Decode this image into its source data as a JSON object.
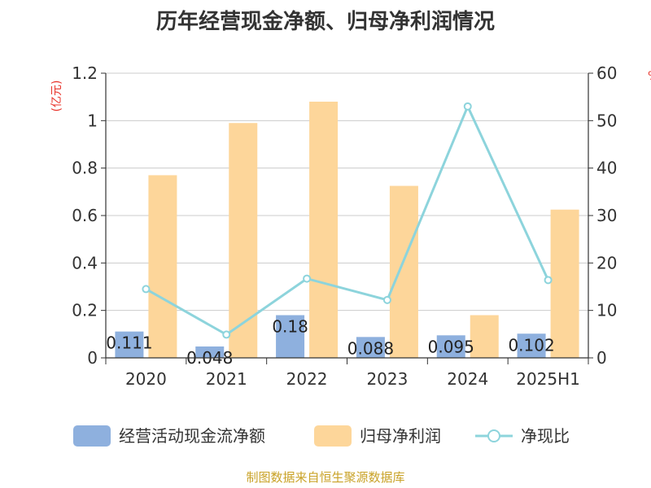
{
  "chart_data": {
    "type": "bar",
    "title": "历年经营现金净额、归母净利润情况",
    "categories": [
      "2020",
      "2021",
      "2022",
      "2023",
      "2024",
      "2025H1"
    ],
    "left_unit": "(亿元)",
    "right_unit": "%",
    "ylim_left": [
      0,
      1.2
    ],
    "yticks_left": [
      "0",
      "0.2",
      "0.4",
      "0.6",
      "0.8",
      "1",
      "1.2"
    ],
    "ylim_right": [
      0,
      60
    ],
    "yticks_right": [
      "0",
      "10",
      "20",
      "30",
      "40",
      "50",
      "60"
    ],
    "series": [
      {
        "name": "经营活动现金流净额",
        "kind": "bar",
        "axis": "left",
        "color": "#8eb0de",
        "values": [
          0.111,
          0.048,
          0.18,
          0.088,
          0.095,
          0.102
        ],
        "labels": [
          "0.111",
          "0.048",
          "0.18",
          "0.088",
          "0.095",
          "0.102"
        ]
      },
      {
        "name": "归母净利润",
        "kind": "bar",
        "axis": "left",
        "color": "#fdd69a",
        "values": [
          0.77,
          0.99,
          1.08,
          0.725,
          0.18,
          0.625
        ]
      },
      {
        "name": "净现比",
        "kind": "line",
        "axis": "right",
        "color": "#8dd4dc",
        "values": [
          14.5,
          4.9,
          16.7,
          12.2,
          53,
          16.4
        ]
      }
    ],
    "grid": true,
    "legend_position": "bottom",
    "source": "制图数据来自恒生聚源数据库"
  }
}
